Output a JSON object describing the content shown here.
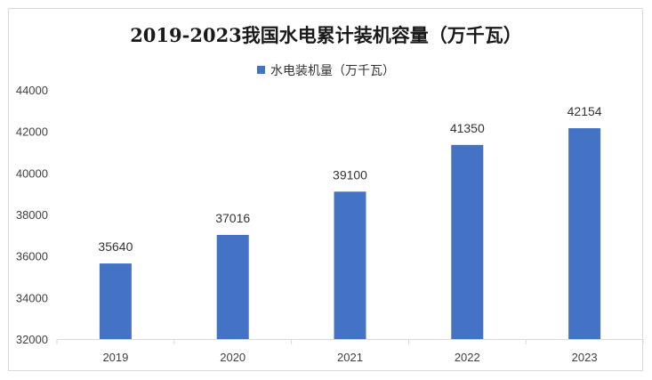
{
  "chart_data": {
    "type": "bar",
    "title": "2019-2023我国水电累计装机容量（万千瓦）",
    "categories": [
      "2019",
      "2020",
      "2021",
      "2022",
      "2023"
    ],
    "series": [
      {
        "name": "水电装机量（万千瓦）",
        "values": [
          35640,
          37016,
          39100,
          41350,
          42154
        ],
        "color": "#4472c4"
      }
    ],
    "ylim": [
      32000,
      44000
    ],
    "yticks": [
      32000,
      34000,
      36000,
      38000,
      40000,
      42000,
      44000
    ],
    "grid": false,
    "legend_position": "top-center",
    "data_labels": true
  }
}
